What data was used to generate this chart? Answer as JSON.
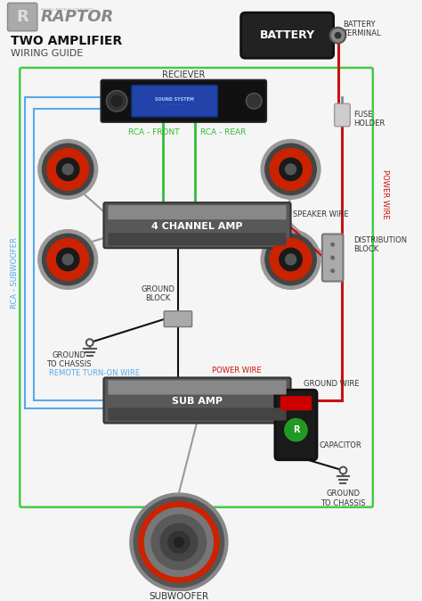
{
  "bg_color": "#f5f5f5",
  "title_line1": "TWO AMPLIFIER",
  "title_line2": "WIRING GUIDE",
  "title_color": "#111111",
  "title_fontsize": 10,
  "subtitle_fontsize": 8,
  "cc": {
    "wire_power": "#cc1111",
    "wire_ground": "#111111",
    "wire_rca": "#33bb33",
    "wire_remote": "#55aaee",
    "wire_speaker": "#aaaaaa",
    "outer_box_green": "#44cc44",
    "outer_box_blue": "#55aaee",
    "amp_dark": "#555555",
    "amp_mid": "#777777",
    "amp_light": "#999999",
    "battery_dark": "#222222",
    "speaker_outer": "#888888",
    "speaker_ring": "#444444",
    "speaker_red": "#cc2200",
    "speaker_center": "#222222",
    "fuse_color": "#bbbbbb",
    "distrib_color": "#aaaaaa",
    "cap_dark": "#1a1a1a",
    "cap_red": "#cc0000",
    "cap_green": "#229922"
  },
  "lb": {
    "raptor": "RAPTOR",
    "reciever": "RECIEVER",
    "battery": "BATTERY",
    "battery_terminal": "BATTERY\nTERMINAL",
    "fuse_holder": "FUSE\nHOLDER",
    "power_wire": "POWER WIRE",
    "four_channel": "4 CHANNEL AMP",
    "speaker_wire": "SPEAKER WIRE",
    "distrib_block": "DISTRIBUTION\nBLOCK",
    "rca_front": "RCA - FRONT",
    "rca_rear": "RCA - REAR",
    "ground_block": "GROUND\nBLOCK",
    "ground_chassis1": "GROUND\nTO CHASSIS",
    "remote_wire": "REMOTE TURN-ON WIRE",
    "rca_sub": "RCA - SUBWOOFER",
    "power_wire2": "POWER WIRE",
    "sub_amp": "SUB AMP",
    "ground_wire": "GROUND WIRE",
    "ground_chassis2": "GROUND\nTO CHASSIS",
    "capacitor": "CAPACITOR",
    "subwoofer": "SUBWOOFER"
  }
}
